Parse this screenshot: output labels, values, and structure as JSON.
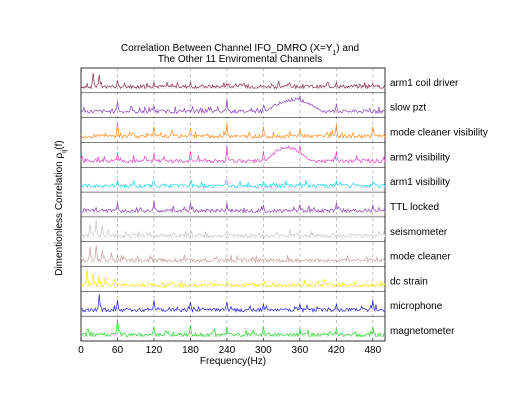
{
  "chart_data": {
    "type": "line",
    "title_lines": [
      "Correlation Between Channel IFO_DMRO (X=Y",
      "The Other 11 Enviromental Channels"
    ],
    "title_subscript": "1",
    "title_suffix": ") and",
    "xlabel": "Frequency(Hz)",
    "ylabel": "Dimentionless Correlation ρ",
    "ylabel_subscript": "ij",
    "ylabel_suffix": "(f)",
    "xlim": [
      0,
      500
    ],
    "xticks": [
      0,
      60,
      120,
      180,
      240,
      300,
      360,
      420,
      480
    ],
    "tick_labels": [
      "0",
      "60",
      "120",
      "180",
      "240",
      "300",
      "360",
      "420",
      "480"
    ],
    "grid": "dashed vertical lines at multiples of 60 Hz",
    "series": [
      {
        "name": "arm1 coil driver",
        "color": "#8b2a4a",
        "peaks": [
          [
            20,
            0.8
          ],
          [
            30,
            0.7
          ],
          [
            60,
            0.4
          ],
          [
            120,
            0.3
          ],
          [
            180,
            0.3
          ],
          [
            240,
            0.25
          ],
          [
            420,
            0.3
          ],
          [
            480,
            0.25
          ]
        ],
        "hump": null
      },
      {
        "name": "slow pzt",
        "color": "#8a3fc6",
        "peaks": [
          [
            60,
            0.6
          ],
          [
            120,
            0.4
          ],
          [
            240,
            0.7
          ],
          [
            300,
            0.4
          ],
          [
            360,
            0.9
          ],
          [
            420,
            0.5
          ]
        ],
        "hump": [
          300,
          400,
          0.8
        ]
      },
      {
        "name": "mode cleaner visibility",
        "color": "#ff8c1a",
        "peaks": [
          [
            60,
            0.8
          ],
          [
            120,
            0.6
          ],
          [
            180,
            0.5
          ],
          [
            240,
            0.8
          ],
          [
            300,
            0.6
          ],
          [
            360,
            0.5
          ],
          [
            420,
            0.7
          ],
          [
            480,
            0.6
          ]
        ],
        "hump": null
      },
      {
        "name": "arm2 visibility",
        "color": "#e23fc8",
        "peaks": [
          [
            60,
            0.5
          ],
          [
            120,
            0.5
          ],
          [
            180,
            0.6
          ],
          [
            240,
            0.9
          ],
          [
            300,
            0.6
          ],
          [
            360,
            0.9
          ],
          [
            420,
            0.6
          ]
        ],
        "hump": [
          300,
          380,
          0.9
        ]
      },
      {
        "name": "arm1 visibility",
        "color": "#19d6e6",
        "peaks": [
          [
            60,
            0.4
          ],
          [
            120,
            0.35
          ],
          [
            180,
            0.3
          ],
          [
            240,
            0.35
          ],
          [
            300,
            0.3
          ],
          [
            360,
            0.3
          ],
          [
            420,
            0.35
          ],
          [
            480,
            0.3
          ]
        ],
        "hump": null
      },
      {
        "name": "TTL locked",
        "color": "#8e3fbf",
        "peaks": [
          [
            60,
            0.5
          ],
          [
            120,
            0.6
          ],
          [
            180,
            0.5
          ],
          [
            240,
            0.5
          ],
          [
            300,
            0.4
          ],
          [
            360,
            0.4
          ],
          [
            420,
            0.5
          ],
          [
            480,
            0.4
          ]
        ],
        "hump": null
      },
      {
        "name": "seismometer",
        "color": "#c8c8c8",
        "peaks": [
          [
            15,
            0.7
          ],
          [
            25,
            0.9
          ],
          [
            35,
            0.6
          ],
          [
            45,
            0.4
          ]
        ],
        "hump": null
      },
      {
        "name": "mode cleaner",
        "color": "#c9a0a0",
        "peaks": [
          [
            15,
            0.8
          ],
          [
            25,
            0.9
          ],
          [
            35,
            0.6
          ],
          [
            50,
            0.5
          ],
          [
            60,
            0.3
          ]
        ],
        "hump": null
      },
      {
        "name": "dc strain",
        "color": "#f5e50a",
        "peaks": [
          [
            10,
            0.9
          ],
          [
            20,
            0.7
          ],
          [
            30,
            0.6
          ],
          [
            40,
            0.5
          ],
          [
            55,
            0.4
          ]
        ],
        "hump": null
      },
      {
        "name": "microphone",
        "color": "#2222d4",
        "peaks": [
          [
            30,
            0.9
          ],
          [
            60,
            0.6
          ],
          [
            120,
            0.6
          ],
          [
            180,
            0.5
          ],
          [
            240,
            0.5
          ],
          [
            300,
            0.4
          ],
          [
            360,
            0.4
          ],
          [
            420,
            0.4
          ],
          [
            480,
            0.6
          ]
        ],
        "hump": null
      },
      {
        "name": "magnetometer",
        "color": "#22d422",
        "peaks": [
          [
            60,
            0.9
          ],
          [
            120,
            0.5
          ],
          [
            180,
            0.6
          ],
          [
            240,
            0.5
          ],
          [
            300,
            0.5
          ],
          [
            360,
            0.4
          ],
          [
            420,
            0.4
          ],
          [
            480,
            0.5
          ]
        ],
        "hump": null
      }
    ]
  }
}
